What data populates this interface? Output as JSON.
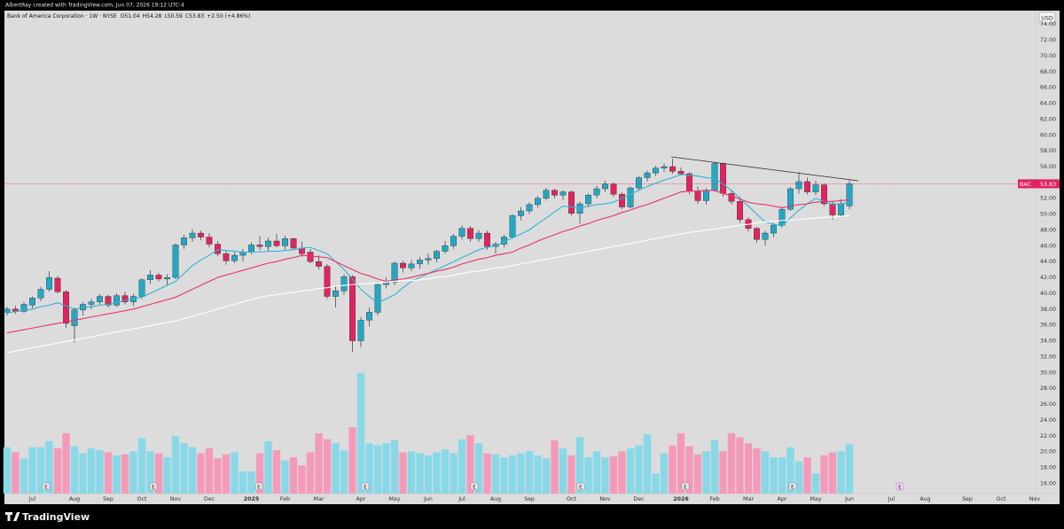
{
  "watermark": "AlbertRay created with TradingView.com, Jun 07, 2026 19:12 UTC-4",
  "header": {
    "symbol": "Bank of America Corporation · 1W · NYSE",
    "open_label": "O",
    "high_label": "H",
    "low_label": "L",
    "close_label": "C",
    "change": "+2.50 (+4.86%)"
  },
  "currency": "USD",
  "price_label": {
    "ticker": "BAC"
  },
  "earnings_label": "E",
  "logo": "TradingView",
  "chart_data": {
    "type": "candlestick",
    "categories": [
      null,
      null,
      null,
      "Jul",
      null,
      null,
      null,
      null,
      "Aug",
      null,
      null,
      null,
      "Sep",
      null,
      null,
      null,
      "Oct",
      null,
      null,
      null,
      "Nov",
      null,
      null,
      null,
      "Dec",
      null,
      null,
      null,
      null,
      "2025",
      null,
      null,
      null,
      "Feb",
      null,
      null,
      null,
      "Mar",
      null,
      null,
      null,
      null,
      "Apr",
      null,
      null,
      null,
      "May",
      null,
      null,
      null,
      "Jun",
      null,
      null,
      null,
      "Jul",
      null,
      null,
      null,
      "Aug",
      null,
      null,
      null,
      "Sep",
      null,
      null,
      null,
      null,
      "Oct",
      null,
      null,
      null,
      "Nov",
      null,
      null,
      null,
      "Dec",
      null,
      null,
      null,
      null,
      "2026",
      null,
      null,
      null,
      "Feb",
      null,
      null,
      null,
      "Mar",
      null,
      null,
      null,
      "Apr",
      null,
      null,
      null,
      "May",
      null,
      null,
      null,
      "Jun",
      null,
      null,
      null,
      null,
      "Jul",
      null,
      null,
      null,
      "Aug",
      null,
      null,
      null,
      null,
      "Sep",
      null,
      null,
      null,
      "Oct",
      null,
      null,
      null,
      "Nov"
    ],
    "open": [
      37.6,
      38.0,
      37.7,
      38.5,
      39.4,
      40.5,
      41.9,
      40.2,
      35.9,
      37.9,
      38.6,
      38.9,
      39.6,
      38.5,
      39.7,
      38.9,
      39.6,
      41.7,
      42.3,
      41.8,
      42.0,
      46.1,
      47.0,
      47.6,
      47.1,
      46.2,
      45.0,
      44.1,
      44.8,
      45.2,
      46.1,
      45.9,
      46.6,
      46.0,
      46.9,
      45.7,
      45.2,
      44.0,
      43.4,
      39.6,
      40.3,
      42.1,
      34.0,
      36.6,
      37.6,
      41.1,
      41.4,
      43.8,
      43.2,
      43.7,
      44.2,
      44.4,
      45.3,
      46.0,
      47.2,
      48.2,
      46.9,
      47.6,
      45.9,
      46.2,
      47.1,
      49.8,
      50.4,
      51.2,
      52.0,
      53.0,
      52.4,
      52.8,
      50.1,
      51.3,
      52.4,
      53.2,
      53.8,
      52.5,
      50.9,
      53.3,
      54.6,
      55.2,
      55.8,
      56.0,
      55.4,
      55.1,
      52.9,
      51.7,
      53.0,
      56.4,
      52.6,
      51.6,
      49.3,
      48.2,
      46.8,
      47.6,
      48.6,
      50.6,
      53.2,
      54.1,
      52.8,
      53.7,
      51.3,
      49.9,
      51.04,
      null,
      null,
      null,
      null,
      null,
      null,
      null,
      null,
      null,
      null,
      null,
      null,
      null,
      null,
      null,
      null,
      null,
      null,
      null,
      null,
      null,
      null
    ],
    "high": [
      38.3,
      38.4,
      38.9,
      39.6,
      40.8,
      42.8,
      42.2,
      40.4,
      38.2,
      38.9,
      39.3,
      39.9,
      39.8,
      40.0,
      40.2,
      39.9,
      41.9,
      42.9,
      42.6,
      42.4,
      46.3,
      47.4,
      48.1,
      47.9,
      47.6,
      46.6,
      45.4,
      45.2,
      45.6,
      46.4,
      47.2,
      47.0,
      47.5,
      47.3,
      47.0,
      46.5,
      45.6,
      44.8,
      43.7,
      41.0,
      42.4,
      42.3,
      37.0,
      38.2,
      41.4,
      42.0,
      44.0,
      44.1,
      44.2,
      44.6,
      45.0,
      45.5,
      46.6,
      47.5,
      48.6,
      48.5,
      48.0,
      47.9,
      46.5,
      47.4,
      50.0,
      50.9,
      51.5,
      52.3,
      53.3,
      53.2,
      53.0,
      53.0,
      51.6,
      52.6,
      53.6,
      54.2,
      54.0,
      52.8,
      53.5,
      54.8,
      55.5,
      56.1,
      56.4,
      57.0,
      55.9,
      55.3,
      53.5,
      53.3,
      56.6,
      56.5,
      53.0,
      52.2,
      49.6,
      48.4,
      47.9,
      48.9,
      50.9,
      53.4,
      55.3,
      54.6,
      54.2,
      53.9,
      51.6,
      51.9,
      54.28,
      null,
      null,
      null,
      null,
      null,
      null,
      null,
      null,
      null,
      null,
      null,
      null,
      null,
      null,
      null,
      null,
      null,
      null,
      null,
      null,
      null,
      null
    ],
    "low": [
      37.2,
      37.4,
      37.5,
      38.1,
      39.0,
      40.2,
      40.0,
      35.6,
      33.8,
      37.2,
      38.0,
      38.5,
      38.2,
      38.3,
      38.6,
      38.4,
      39.3,
      41.2,
      41.5,
      41.0,
      41.8,
      45.6,
      46.5,
      46.7,
      45.8,
      44.7,
      43.6,
      43.8,
      44.0,
      44.9,
      45.4,
      45.3,
      45.8,
      45.5,
      45.6,
      44.6,
      43.8,
      43.0,
      39.3,
      38.2,
      39.8,
      32.6,
      33.2,
      35.8,
      37.2,
      40.6,
      41.0,
      42.6,
      42.8,
      43.1,
      43.6,
      43.9,
      45.0,
      45.6,
      46.8,
      46.5,
      46.5,
      45.5,
      45.0,
      45.8,
      46.9,
      49.2,
      50.0,
      50.8,
      51.7,
      52.0,
      51.8,
      49.8,
      48.8,
      50.9,
      52.0,
      52.8,
      52.2,
      50.6,
      50.7,
      53.0,
      54.1,
      54.8,
      55.3,
      55.1,
      54.9,
      52.5,
      51.3,
      51.2,
      52.8,
      52.2,
      51.2,
      48.9,
      47.8,
      46.4,
      46.0,
      47.1,
      48.3,
      50.4,
      52.6,
      52.5,
      52.4,
      51.0,
      49.3,
      49.6,
      50.59,
      null,
      null,
      null,
      null,
      null,
      null,
      null,
      null,
      null,
      null,
      null,
      null,
      null,
      null,
      null,
      null,
      null,
      null,
      null,
      null,
      null,
      null
    ],
    "close": [
      38.0,
      37.7,
      38.6,
      39.4,
      40.5,
      42.0,
      40.2,
      36.2,
      37.9,
      38.6,
      38.9,
      39.6,
      38.5,
      39.7,
      38.9,
      39.6,
      41.7,
      42.3,
      41.8,
      42.0,
      46.1,
      47.0,
      47.6,
      47.1,
      46.2,
      45.0,
      44.1,
      44.8,
      45.2,
      46.1,
      45.9,
      46.6,
      46.0,
      46.9,
      45.7,
      45.0,
      44.0,
      43.4,
      39.6,
      40.3,
      42.1,
      34.0,
      36.6,
      37.6,
      41.1,
      41.4,
      43.8,
      43.2,
      43.7,
      44.2,
      44.4,
      45.3,
      46.0,
      47.2,
      48.2,
      46.9,
      47.6,
      45.9,
      46.2,
      47.1,
      49.8,
      50.4,
      51.2,
      52.0,
      53.0,
      52.4,
      52.8,
      50.1,
      51.3,
      52.4,
      53.2,
      53.8,
      52.5,
      50.9,
      53.3,
      54.6,
      55.2,
      55.8,
      56.0,
      55.4,
      55.1,
      52.9,
      51.7,
      53.0,
      56.4,
      52.6,
      51.6,
      49.3,
      48.2,
      46.8,
      47.6,
      48.6,
      50.6,
      53.2,
      54.1,
      52.8,
      53.7,
      51.3,
      49.9,
      51.33,
      53.83,
      null,
      null,
      null,
      null,
      null,
      null,
      null,
      null,
      null,
      null,
      null,
      null,
      null,
      null,
      null,
      null,
      null,
      null,
      null,
      null,
      null,
      null
    ],
    "volume": {
      "ylim": [
        0,
        2400
      ],
      "values": [
        230,
        205,
        175,
        230,
        230,
        260,
        225,
        300,
        235,
        200,
        225,
        215,
        205,
        190,
        195,
        210,
        275,
        210,
        200,
        180,
        285,
        250,
        230,
        200,
        225,
        175,
        195,
        205,
        110,
        110,
        200,
        260,
        215,
        165,
        180,
        140,
        205,
        300,
        270,
        250,
        215,
        330,
        600,
        250,
        240,
        250,
        265,
        205,
        210,
        200,
        190,
        205,
        220,
        200,
        270,
        290,
        250,
        200,
        195,
        180,
        190,
        200,
        210,
        190,
        175,
        265,
        225,
        190,
        280,
        180,
        210,
        180,
        185,
        210,
        225,
        240,
        295,
        100,
        200,
        240,
        300,
        235,
        195,
        210,
        265,
        210,
        300,
        280,
        250,
        225,
        210,
        180,
        180,
        230,
        160,
        180,
        100,
        190,
        205,
        210,
        245,
        null,
        null,
        null,
        null,
        null,
        null,
        null,
        null,
        null,
        null,
        null,
        null,
        null,
        null,
        null,
        null,
        null,
        null,
        null,
        null,
        null,
        null
      ]
    },
    "series": [
      {
        "color": "#2fb4d6",
        "values": [
          37.5,
          37.7,
          37.8,
          38,
          38.3,
          38.5,
          38.8,
          38.4,
          38,
          38.2,
          38.3,
          38.5,
          38.6,
          38.8,
          39.1,
          39.3,
          39.5,
          40,
          40.5,
          41,
          41.5,
          42.5,
          43.5,
          44.2,
          44.8,
          45.5,
          45.4,
          45.3,
          45.2,
          45.2,
          45.2,
          45.3,
          45.3,
          45.4,
          45.5,
          45.7,
          45.8,
          45.4,
          45,
          44,
          43,
          41.8,
          40.5,
          39.6,
          38.8,
          39.3,
          39.8,
          40.7,
          41.5,
          42,
          42.5,
          43,
          43.5,
          44,
          44.5,
          45,
          45.5,
          45.8,
          46,
          46.5,
          47,
          47.5,
          48,
          48.8,
          49.5,
          50.3,
          51,
          50.9,
          50.8,
          51,
          51.2,
          51.3,
          51.5,
          52,
          52.5,
          53,
          53.5,
          53.9,
          54.3,
          54.6,
          55,
          54.9,
          54.8,
          54.6,
          54.5,
          53.8,
          53,
          52,
          51,
          50,
          49,
          48.7,
          48.5,
          49.5,
          50.5,
          51.3,
          52,
          51.6,
          51.2,
          51.3,
          51.5,
          null,
          null,
          null,
          null,
          null,
          null,
          null,
          null,
          null,
          null,
          null,
          null,
          null,
          null,
          null,
          null,
          null,
          null,
          null,
          null,
          null,
          null
        ]
      },
      {
        "color": "#e8336a",
        "values": [
          35,
          35.2,
          35.4,
          35.6,
          35.8,
          36,
          36.2,
          36.4,
          36.6,
          36.8,
          37,
          37.2,
          37.4,
          37.6,
          37.8,
          38,
          38.3,
          38.6,
          38.9,
          39.2,
          39.5,
          40,
          40.5,
          41,
          41.5,
          42,
          42.3,
          42.6,
          42.9,
          43.2,
          43.5,
          43.8,
          44,
          44.3,
          44.5,
          44.8,
          44.7,
          44.6,
          44.5,
          44,
          43.5,
          43,
          42.5,
          42.2,
          41.8,
          41.5,
          41.7,
          41.8,
          42,
          42.3,
          42.5,
          42.8,
          43,
          43.3,
          43.7,
          44,
          44.3,
          44.5,
          44.8,
          45,
          45.2,
          45.7,
          46.1,
          46.6,
          47,
          47.4,
          47.8,
          48.1,
          48.5,
          48.8,
          49.2,
          49.5,
          49.8,
          50.2,
          50.5,
          50.9,
          51.2,
          51.6,
          52,
          52.4,
          52.8,
          52.9,
          52.9,
          53,
          53,
          52.6,
          52.3,
          51.9,
          51.5,
          51.3,
          51.2,
          51,
          50.8,
          51,
          51.2,
          51.3,
          51.5,
          51.6,
          51.6,
          51.7,
          51.8,
          null,
          null,
          null,
          null,
          null,
          null,
          null,
          null,
          null,
          null,
          null,
          null,
          null,
          null,
          null,
          null,
          null,
          null,
          null,
          null,
          null,
          null
        ]
      },
      {
        "color": "#ffffff",
        "values": [
          32.5,
          32.7,
          32.9,
          33.1,
          33.3,
          33.5,
          33.7,
          33.9,
          34.1,
          34.3,
          34.5,
          34.7,
          34.9,
          35.1,
          35.3,
          35.5,
          35.7,
          35.9,
          36.1,
          36.3,
          36.5,
          36.8,
          37.1,
          37.4,
          37.7,
          38.0,
          38.3,
          38.6,
          38.9,
          39.2,
          39.5,
          39.7,
          39.8,
          40.0,
          40.1,
          40.3,
          40.4,
          40.6,
          40.7,
          40.9,
          41.0,
          41.1,
          41.2,
          41.2,
          41.3,
          41.4,
          41.5,
          41.6,
          41.6,
          41.7,
          41.8,
          42.0,
          42.1,
          42.3,
          42.5,
          42.7,
          42.8,
          43.0,
          43.2,
          43.3,
          43.5,
          43.7,
          43.9,
          44.1,
          44.3,
          44.5,
          44.7,
          44.9,
          45.1,
          45.3,
          45.5,
          45.7,
          45.9,
          46.1,
          46.3,
          46.5,
          46.7,
          46.9,
          47.1,
          47.3,
          47.5,
          47.7,
          47.8,
          48.0,
          48.1,
          48.3,
          48.4,
          48.6,
          48.7,
          48.9,
          49.0,
          49.1,
          49.2,
          49.2,
          49.3,
          49.4,
          49.5,
          49.6,
          49.6,
          49.7,
          49.8,
          null,
          null,
          null,
          null,
          null,
          null,
          null,
          null,
          null,
          null,
          null,
          null,
          null,
          null,
          null,
          null,
          null,
          null,
          null,
          null,
          null,
          null
        ]
      }
    ],
    "colors": {
      "up": "#22a7c4",
      "down": "#e0245e",
      "volume_up": "#88d8e8",
      "volume_down": "#f49ab9",
      "last_price": "#e0245e"
    },
    "ylim": [
      14.7,
      75.7
    ],
    "yticks": [
      {
        "value": 16,
        "label": "16.00"
      },
      {
        "value": 18,
        "label": "18.00"
      },
      {
        "value": 20,
        "label": "20.00"
      },
      {
        "value": 22,
        "label": "22.00"
      },
      {
        "value": 24,
        "label": "24.00"
      },
      {
        "value": 26,
        "label": "26.00"
      },
      {
        "value": 28,
        "label": "28.00"
      },
      {
        "value": 30,
        "label": "30.00"
      },
      {
        "value": 32,
        "label": "32.00"
      },
      {
        "value": 34,
        "label": "34.00"
      },
      {
        "value": 36,
        "label": "36.00"
      },
      {
        "value": 38,
        "label": "38.00"
      },
      {
        "value": 40,
        "label": "40.00"
      },
      {
        "value": 42,
        "label": "42.00"
      },
      {
        "value": 44,
        "label": "44.00"
      },
      {
        "value": 46,
        "label": "46.00"
      },
      {
        "value": 48,
        "label": "48.00"
      },
      {
        "value": 50,
        "label": "50.00"
      },
      {
        "value": 52,
        "label": "52.00"
      },
      {
        "value": 54,
        "label": "54.00"
      },
      {
        "value": 56,
        "label": "56.00"
      },
      {
        "value": 58,
        "label": "58.00"
      },
      {
        "value": 60,
        "label": "60.00"
      },
      {
        "value": 62,
        "label": "62.00"
      },
      {
        "value": 64,
        "label": "64.00"
      },
      {
        "value": 66,
        "label": "66.00"
      },
      {
        "value": 68,
        "label": "68.00"
      },
      {
        "value": 70,
        "label": "70.00"
      },
      {
        "value": 72,
        "label": "72.00"
      },
      {
        "value": 74,
        "label": "74.00"
      }
    ],
    "grid": false
  }
}
